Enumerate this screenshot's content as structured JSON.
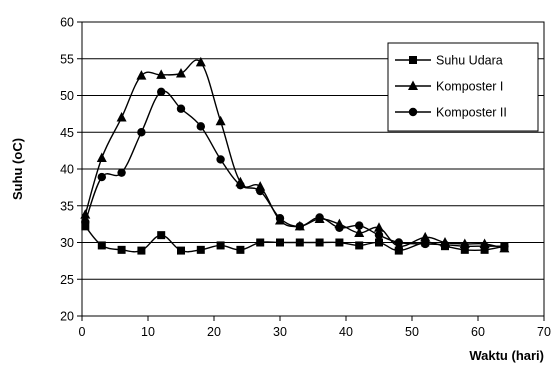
{
  "chart_data": {
    "type": "line",
    "xlabel": "Waktu (hari)",
    "ylabel": "Suhu (oC)",
    "xlim": [
      0,
      70
    ],
    "ylim": [
      20,
      60
    ],
    "x_ticks": [
      0,
      10,
      20,
      30,
      40,
      50,
      60,
      70
    ],
    "y_ticks": [
      20,
      25,
      30,
      35,
      40,
      45,
      50,
      55,
      60
    ],
    "grid": "horizontal",
    "legend_position": "top-right",
    "series": [
      {
        "name": "Suhu Udara",
        "marker": "square",
        "x": [
          0.5,
          3,
          6,
          9,
          12,
          15,
          18,
          21,
          24,
          27,
          30,
          33,
          36,
          39,
          42,
          45,
          48,
          52,
          55,
          58,
          61,
          64
        ],
        "y": [
          32.2,
          29.6,
          29.0,
          28.9,
          31.0,
          28.9,
          29.0,
          29.6,
          29.0,
          30.0,
          30.0,
          30.0,
          30.0,
          30.0,
          29.6,
          30.0,
          28.9,
          30.0,
          29.5,
          29.0,
          29.0,
          29.5
        ]
      },
      {
        "name": "Komposter I",
        "marker": "triangle",
        "x": [
          0.5,
          3,
          6,
          9,
          12,
          15,
          18,
          21,
          24,
          27,
          30,
          33,
          36,
          39,
          42,
          45,
          48,
          52,
          55,
          58,
          61,
          64
        ],
        "y": [
          33.8,
          41.5,
          47.0,
          52.7,
          52.8,
          53.0,
          54.5,
          46.5,
          38.2,
          37.6,
          33.0,
          32.2,
          33.2,
          32.5,
          31.3,
          32.0,
          29.5,
          30.7,
          30.0,
          29.8,
          29.8,
          29.2
        ]
      },
      {
        "name": "Komposter II",
        "marker": "circle",
        "x": [
          0.5,
          3,
          6,
          9,
          12,
          15,
          18,
          21,
          24,
          27,
          30,
          33,
          36,
          39,
          42,
          45,
          48,
          52,
          55,
          58,
          61,
          64
        ],
        "y": [
          32.8,
          38.9,
          39.5,
          45.0,
          50.5,
          48.2,
          45.8,
          41.3,
          37.8,
          37.0,
          33.3,
          32.2,
          33.4,
          32.0,
          32.3,
          31.0,
          30.0,
          29.8,
          29.7,
          29.5,
          29.5,
          29.5
        ]
      }
    ]
  }
}
